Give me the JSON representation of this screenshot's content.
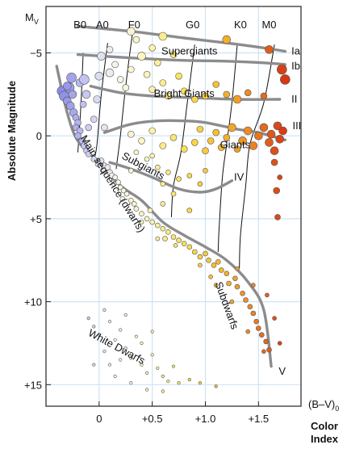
{
  "chart_data": {
    "type": "scatter",
    "title": "",
    "x_axis": {
      "label_main": "(B–V)",
      "label_sub": "0",
      "label_caption_line1": "Color",
      "label_caption_line2": "Index",
      "range": [
        -0.5,
        1.9
      ],
      "ticks": [
        0.0,
        0.5,
        1.0,
        1.5
      ],
      "tick_labels": [
        "0",
        "+0.5",
        "+1.0",
        "+1.5"
      ]
    },
    "y_axis": {
      "label": "Absolute Magnitude",
      "top_label_main": "M",
      "top_label_sub": "V",
      "range": [
        -7.8,
        16.3
      ],
      "reversed": true,
      "ticks": [
        -5,
        0,
        5,
        10,
        15
      ],
      "tick_labels": [
        "−5",
        "0",
        "+5",
        "+10",
        "+15"
      ]
    },
    "grid": true,
    "spectral_types": [
      {
        "label": "B0",
        "bv": -0.18
      },
      {
        "label": "A0",
        "bv": 0.03
      },
      {
        "label": "F0",
        "bv": 0.33
      },
      {
        "label": "G0",
        "bv": 0.88
      },
      {
        "label": "K0",
        "bv": 1.33
      },
      {
        "label": "M0",
        "bv": 1.6
      }
    ],
    "luminosity_classes": [
      {
        "label": "Ia",
        "points": [
          [
            -0.2,
            -6.6
          ],
          [
            0.3,
            -6.3
          ],
          [
            0.8,
            -5.9
          ],
          [
            1.2,
            -5.6
          ],
          [
            1.55,
            -5.3
          ],
          [
            1.75,
            -5.1
          ]
        ],
        "label_at": [
          1.81,
          -5.1
        ]
      },
      {
        "label": "Ib",
        "points": [
          [
            -0.2,
            -4.9
          ],
          [
            0.3,
            -4.7
          ],
          [
            0.8,
            -4.55
          ],
          [
            1.2,
            -4.5
          ],
          [
            1.55,
            -4.4
          ],
          [
            1.75,
            -4.3
          ]
        ],
        "label_at": [
          1.81,
          -4.2
        ]
      },
      {
        "label": "II",
        "points": [
          [
            -0.08,
            -3.0
          ],
          [
            0.2,
            -2.6
          ],
          [
            0.5,
            -2.4
          ],
          [
            0.9,
            -2.3
          ],
          [
            1.3,
            -2.2
          ],
          [
            1.7,
            -2.2
          ]
        ],
        "label_at": [
          1.81,
          -2.2
        ]
      },
      {
        "label": "III",
        "points": [
          [
            0.05,
            -0.2
          ],
          [
            0.3,
            -0.7
          ],
          [
            0.55,
            -0.9
          ],
          [
            0.8,
            -0.9
          ],
          [
            1.0,
            -0.8
          ],
          [
            1.3,
            -0.4
          ],
          [
            1.5,
            -0.2
          ],
          [
            1.75,
            0.25
          ]
        ],
        "label_at": [
          1.82,
          -0.6
        ]
      },
      {
        "label": "IV",
        "points": [
          [
            0.1,
            1.6
          ],
          [
            0.3,
            2.0
          ],
          [
            0.5,
            2.5
          ],
          [
            0.75,
            3.2
          ],
          [
            0.95,
            3.4
          ],
          [
            1.1,
            3.2
          ],
          [
            1.25,
            2.7
          ]
        ],
        "label_at": [
          1.27,
          2.5
        ]
      },
      {
        "label": "V",
        "points": [
          [
            -0.4,
            -4.2
          ],
          [
            -0.3,
            -1.4
          ],
          [
            -0.2,
            0.3
          ],
          [
            0,
            1.6
          ],
          [
            0.2,
            3.0
          ],
          [
            0.4,
            3.9
          ],
          [
            0.6,
            5.2
          ],
          [
            0.8,
            6.0
          ],
          [
            1.0,
            6.7
          ],
          [
            1.2,
            7.5
          ],
          [
            1.4,
            8.8
          ],
          [
            1.55,
            10.5
          ],
          [
            1.62,
            13.9
          ]
        ],
        "label_at": [
          1.69,
          14.2
        ]
      }
    ],
    "region_labels": [
      {
        "label": "Supergiants",
        "at": [
          0.85,
          -4.9
        ],
        "rotate": 0
      },
      {
        "label": "Bright Giants",
        "at": [
          0.8,
          -2.35
        ],
        "rotate": 0
      },
      {
        "label": "Giants",
        "at": [
          1.28,
          0.75
        ],
        "rotate": 0
      },
      {
        "label": "Subgiants",
        "at": [
          0.4,
          2.0
        ],
        "rotate": 28
      },
      {
        "label": "Main sequence (dwarfs)",
        "at": [
          0.1,
          3.0
        ],
        "rotate": 58
      },
      {
        "label": "Subdwarfs",
        "at": [
          1.17,
          10.3
        ],
        "rotate": 70
      },
      {
        "label": "White Dwarfs",
        "at": [
          0.15,
          12.9
        ],
        "rotate": 28
      }
    ],
    "spectral_lines": [
      {
        "points": [
          [
            -0.15,
            -5.0
          ],
          [
            -0.17,
            -2.0
          ],
          [
            -0.2,
            1.0
          ]
        ]
      },
      {
        "points": [
          [
            0.08,
            -5.6
          ],
          [
            0.02,
            -2.5
          ],
          [
            -0.02,
            0.5
          ],
          [
            -0.05,
            1.5
          ]
        ]
      },
      {
        "points": [
          [
            0.32,
            -6.5
          ],
          [
            0.25,
            -3.0
          ],
          [
            0.2,
            0.0
          ],
          [
            0.16,
            2.0
          ]
        ]
      },
      {
        "points": [
          [
            0.9,
            -5.5
          ],
          [
            0.83,
            -2.0
          ],
          [
            0.77,
            1.0
          ],
          [
            0.7,
            3.0
          ],
          [
            0.68,
            4.9
          ]
        ]
      },
      {
        "points": [
          [
            1.3,
            -5.5
          ],
          [
            1.25,
            -2.0
          ],
          [
            1.2,
            0.5
          ],
          [
            1.16,
            2.5
          ],
          [
            1.13,
            5.5
          ],
          [
            1.12,
            7.0
          ]
        ]
      },
      {
        "points": [
          [
            1.65,
            -5.5
          ],
          [
            1.55,
            -2.0
          ],
          [
            1.42,
            0.5
          ],
          [
            1.38,
            3.0
          ],
          [
            1.33,
            6.0
          ],
          [
            1.32,
            8.0
          ]
        ]
      }
    ],
    "stars": [
      [
        -0.35,
        -2.7,
        6
      ],
      [
        -0.33,
        -2.4,
        6
      ],
      [
        -0.3,
        -2.1,
        5
      ],
      [
        -0.28,
        -2.9,
        6
      ],
      [
        -0.27,
        -1.8,
        5
      ],
      [
        -0.25,
        -2.5,
        5
      ],
      [
        -0.3,
        -3.0,
        5
      ],
      [
        -0.24,
        -1.4,
        5
      ],
      [
        -0.22,
        -1.1,
        4
      ],
      [
        -0.2,
        -0.8,
        4
      ],
      [
        -0.22,
        -0.5,
        4
      ],
      [
        -0.18,
        -0.3,
        4
      ],
      [
        -0.2,
        0.0,
        4
      ],
      [
        -0.16,
        0.3,
        4
      ],
      [
        -0.14,
        0.6,
        4
      ],
      [
        -0.12,
        0.9,
        3.5
      ],
      [
        -0.1,
        1.1,
        3.5
      ],
      [
        -0.18,
        -3.2,
        5
      ],
      [
        -0.14,
        -3.4,
        6
      ],
      [
        -0.26,
        -3.5,
        6
      ],
      [
        -0.15,
        -1.9,
        4
      ],
      [
        -0.12,
        -2.5,
        5
      ],
      [
        -0.1,
        -0.5,
        4
      ],
      [
        -0.05,
        -1.0,
        4
      ],
      [
        -0.02,
        -2.2,
        4.5
      ],
      [
        0.0,
        -3.6,
        5
      ],
      [
        0.02,
        -4.8,
        5
      ],
      [
        0.05,
        -0.5,
        4
      ],
      [
        -0.05,
        1.4,
        3.5
      ],
      [
        0.02,
        1.5,
        3.5
      ],
      [
        -0.01,
        1.7,
        3.5
      ],
      [
        0.05,
        1.8,
        3.5
      ],
      [
        0.08,
        1.9,
        3.5
      ],
      [
        0.04,
        2.1,
        3.5
      ],
      [
        0.1,
        2.2,
        3.5
      ],
      [
        0.12,
        2.4,
        3.5
      ],
      [
        0.15,
        2.5,
        3
      ],
      [
        0.18,
        2.8,
        3
      ],
      [
        0.14,
        2.9,
        3
      ],
      [
        0.2,
        3.1,
        3
      ],
      [
        0.23,
        3.3,
        3
      ],
      [
        0.26,
        3.5,
        3
      ],
      [
        0.22,
        3.8,
        3
      ],
      [
        0.3,
        3.9,
        3
      ],
      [
        0.33,
        4.1,
        3
      ],
      [
        0.35,
        4.4,
        3
      ],
      [
        0.4,
        4.7,
        3
      ],
      [
        0.45,
        5.0,
        3
      ],
      [
        0.5,
        5.2,
        3
      ],
      [
        0.55,
        5.4,
        3
      ],
      [
        0.48,
        4.5,
        3
      ],
      [
        0.6,
        5.6,
        3
      ],
      [
        0.65,
        5.8,
        3
      ],
      [
        0.62,
        6.2,
        3
      ],
      [
        0.7,
        6.1,
        3
      ],
      [
        0.75,
        6.3,
        3
      ],
      [
        0.72,
        6.6,
        2.5
      ],
      [
        0.8,
        6.5,
        3
      ],
      [
        0.85,
        6.7,
        3
      ],
      [
        0.9,
        7.0,
        3
      ],
      [
        0.95,
        7.3,
        3
      ],
      [
        1.0,
        7.1,
        3
      ],
      [
        1.03,
        7.5,
        3
      ],
      [
        1.08,
        7.8,
        3
      ],
      [
        1.12,
        7.6,
        3
      ],
      [
        1.15,
        8.1,
        3
      ],
      [
        1.2,
        8.3,
        3
      ],
      [
        1.22,
        8.9,
        3
      ],
      [
        1.28,
        8.6,
        3
      ],
      [
        1.3,
        9.1,
        3
      ],
      [
        1.35,
        9.5,
        3
      ],
      [
        1.38,
        9.9,
        3
      ],
      [
        1.42,
        10.3,
        3
      ],
      [
        1.45,
        10.7,
        3
      ],
      [
        1.48,
        11.2,
        3
      ],
      [
        1.5,
        11.6,
        3
      ],
      [
        1.53,
        12.0,
        3
      ],
      [
        1.57,
        12.4,
        3
      ],
      [
        1.6,
        12.9,
        3
      ],
      [
        1.1,
        9.0,
        2.5
      ],
      [
        1.25,
        10.0,
        2.5
      ],
      [
        1.4,
        11.8,
        2.5
      ],
      [
        1.55,
        13.0,
        2.5
      ],
      [
        1.65,
        11.0,
        2.5
      ],
      [
        1.58,
        9.6,
        2.5
      ],
      [
        1.45,
        9.0,
        2.5
      ],
      [
        1.7,
        12.5,
        2.5
      ],
      [
        1.05,
        8.5,
        2.5
      ],
      [
        1.3,
        8.0,
        2.5
      ],
      [
        0.95,
        7.8,
        2.5
      ],
      [
        0.55,
        6.2,
        2.5
      ],
      [
        0.4,
        5.2,
        2.5
      ],
      [
        0.1,
        -5.2,
        4
      ],
      [
        0.15,
        -4.3,
        4
      ],
      [
        0.1,
        -3.8,
        5
      ],
      [
        0.2,
        -3.4,
        4
      ],
      [
        0.25,
        -2.9,
        4
      ],
      [
        0.3,
        -4.0,
        4
      ],
      [
        0.35,
        -5.8,
        4
      ],
      [
        0.4,
        -4.8,
        5
      ],
      [
        0.45,
        -3.7,
        4
      ],
      [
        0.5,
        -2.8,
        4
      ],
      [
        0.5,
        -5.3,
        4
      ],
      [
        0.55,
        -4.4,
        4
      ],
      [
        0.6,
        -3.2,
        4
      ],
      [
        0.65,
        -2.4,
        4
      ],
      [
        0.7,
        -4.9,
        4
      ],
      [
        0.75,
        -3.6,
        4
      ],
      [
        0.8,
        -2.7,
        4
      ],
      [
        0.9,
        -2.2,
        4
      ],
      [
        1.0,
        -2.4,
        4
      ],
      [
        1.1,
        -3.1,
        4
      ],
      [
        1.2,
        -2.5,
        4
      ],
      [
        1.3,
        -2.2,
        5
      ],
      [
        1.4,
        -2.6,
        4
      ],
      [
        1.55,
        -2.4,
        4
      ],
      [
        0.3,
        -6.3,
        5
      ],
      [
        0.6,
        -6.0,
        5
      ],
      [
        1.2,
        -5.8,
        5
      ],
      [
        1.6,
        -5.2,
        5
      ],
      [
        1.72,
        -4.0,
        6
      ],
      [
        1.75,
        -3.4,
        6
      ],
      [
        0.3,
        -0.1,
        4
      ],
      [
        0.4,
        0.3,
        4
      ],
      [
        0.5,
        -0.3,
        4
      ],
      [
        0.6,
        0.6,
        4
      ],
      [
        0.7,
        0.1,
        4
      ],
      [
        0.8,
        0.8,
        4
      ],
      [
        0.9,
        0.4,
        4
      ],
      [
        0.95,
        -0.4,
        4
      ],
      [
        1.0,
        0.9,
        4
      ],
      [
        1.05,
        0.3,
        4
      ],
      [
        1.1,
        -0.2,
        4
      ],
      [
        1.15,
        0.7,
        4
      ],
      [
        1.2,
        0.1,
        4
      ],
      [
        1.25,
        -0.5,
        5
      ],
      [
        1.3,
        0.8,
        4
      ],
      [
        1.35,
        0.3,
        5
      ],
      [
        1.4,
        -0.3,
        5
      ],
      [
        1.45,
        0.6,
        5
      ],
      [
        1.5,
        0.0,
        5
      ],
      [
        1.55,
        -0.5,
        5
      ],
      [
        1.6,
        0.4,
        5
      ],
      [
        1.62,
        -0.1,
        5
      ],
      [
        1.65,
        0.9,
        5
      ],
      [
        1.68,
        -0.6,
        5
      ],
      [
        1.7,
        0.2,
        5
      ],
      [
        1.73,
        -0.3,
        5
      ],
      [
        1.65,
        1.6,
        4
      ],
      [
        1.67,
        3.3,
        4
      ],
      [
        1.68,
        4.9,
        3.5
      ],
      [
        1.7,
        2.5,
        3
      ],
      [
        0.35,
        1.0,
        3
      ],
      [
        0.45,
        1.4,
        3
      ],
      [
        0.55,
        1.9,
        3
      ],
      [
        0.65,
        2.2,
        3
      ],
      [
        0.75,
        2.6,
        3
      ],
      [
        0.85,
        2.4,
        3
      ],
      [
        0.95,
        2.9,
        3
      ],
      [
        1.0,
        2.1,
        3
      ],
      [
        0.7,
        3.5,
        3
      ],
      [
        0.6,
        2.9,
        3
      ],
      [
        0.3,
        2.1,
        3
      ],
      [
        0.5,
        1.2,
        3
      ],
      [
        0.85,
        4.5,
        3
      ],
      [
        0.6,
        4.1,
        3
      ],
      [
        -0.1,
        11.0,
        1.8
      ],
      [
        -0.05,
        11.5,
        1.8
      ],
      [
        0.0,
        12.0,
        1.8
      ],
      [
        0.05,
        10.5,
        1.8
      ],
      [
        0.1,
        11.2,
        1.8
      ],
      [
        0.15,
        12.3,
        1.8
      ],
      [
        0.2,
        11.7,
        1.8
      ],
      [
        0.25,
        12.8,
        1.8
      ],
      [
        0.3,
        13.4,
        1.8
      ],
      [
        0.35,
        12.1,
        1.8
      ],
      [
        0.4,
        13.8,
        1.8
      ],
      [
        0.45,
        14.3,
        1.8
      ],
      [
        0.5,
        13.2,
        1.8
      ],
      [
        0.55,
        14.0,
        1.8
      ],
      [
        0.6,
        14.5,
        1.8
      ],
      [
        0.65,
        14.8,
        1.8
      ],
      [
        0.7,
        13.9,
        1.8
      ],
      [
        0.75,
        14.9,
        1.8
      ],
      [
        0.85,
        14.7,
        1.8
      ],
      [
        0.95,
        14.9,
        1.8
      ],
      [
        1.1,
        15.1,
        1.8
      ],
      [
        0.05,
        13.0,
        1.8
      ],
      [
        0.2,
        13.5,
        1.8
      ],
      [
        0.3,
        14.9,
        1.8
      ],
      [
        0.45,
        15.3,
        1.8
      ],
      [
        0.6,
        15.4,
        1.8
      ],
      [
        -0.05,
        13.8,
        1.8
      ],
      [
        0.15,
        14.5,
        1.8
      ],
      [
        0.4,
        12.5,
        1.8
      ],
      [
        0.5,
        11.8,
        1.8
      ],
      [
        0.25,
        10.8,
        1.8
      ],
      [
        0.1,
        13.8,
        1.8
      ]
    ]
  }
}
